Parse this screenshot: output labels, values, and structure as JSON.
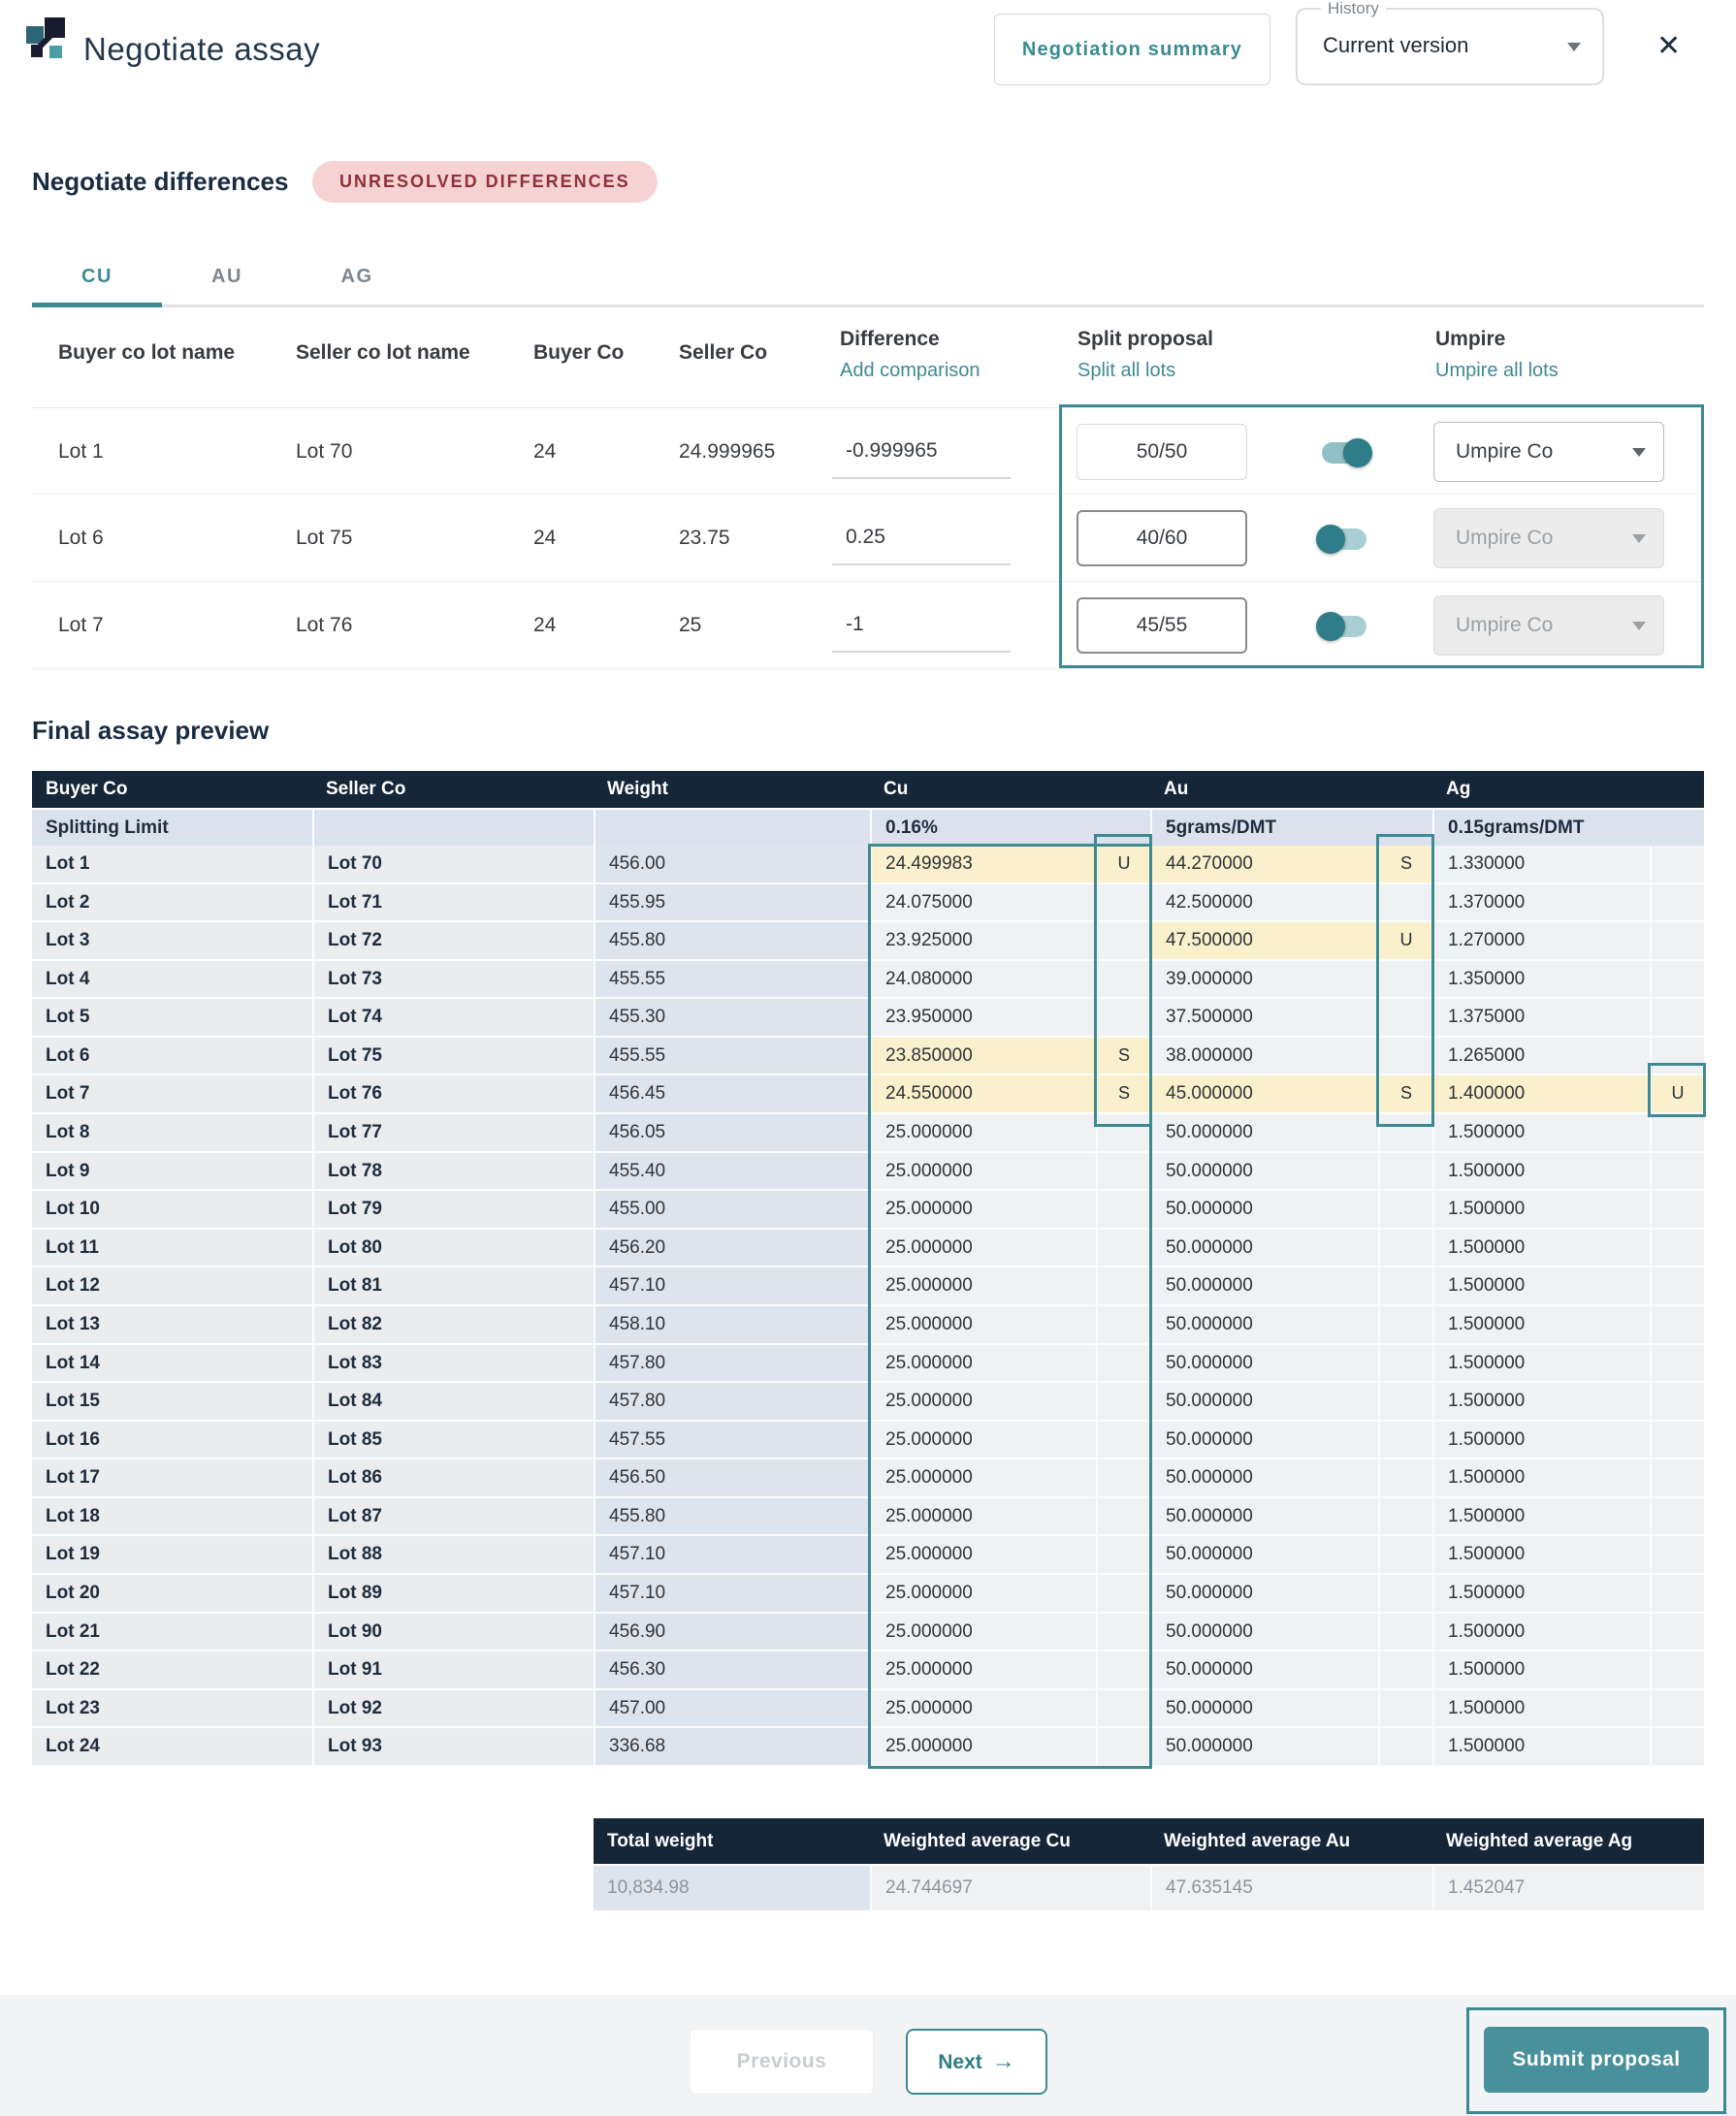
{
  "app": {
    "title": "Negotiate assay"
  },
  "header": {
    "summary_button": "Negotiation summary",
    "history_label": "History",
    "history_value": "Current version",
    "close_icon": "✕"
  },
  "negotiate": {
    "heading": "Negotiate differences",
    "badge": "UNRESOLVED DIFFERENCES",
    "tabs": [
      {
        "label": "CU",
        "active": true
      },
      {
        "label": "AU",
        "active": false
      },
      {
        "label": "AG",
        "active": false
      }
    ],
    "columns": {
      "buyer_lot": "Buyer co lot name",
      "seller_lot": "Seller co lot name",
      "buyer": "Buyer Co",
      "seller": "Seller Co",
      "difference": "Difference",
      "difference_link": "Add comparison",
      "split": "Split proposal",
      "split_link": "Split all lots",
      "umpire": "Umpire",
      "umpire_link": "Umpire all lots"
    },
    "rows": [
      {
        "buyer_lot": "Lot 1",
        "seller_lot": "Lot 70",
        "buyer": "24",
        "seller": "24.999965",
        "difference": "-0.999965",
        "split": "50/50",
        "toggle_on": true,
        "umpire": "Umpire Co",
        "umpire_enabled": true
      },
      {
        "buyer_lot": "Lot 6",
        "seller_lot": "Lot 75",
        "buyer": "24",
        "seller": "23.75",
        "difference": "0.25",
        "split": "40/60",
        "toggle_on": false,
        "umpire": "Umpire Co",
        "umpire_enabled": false
      },
      {
        "buyer_lot": "Lot 7",
        "seller_lot": "Lot 76",
        "buyer": "24",
        "seller": "25",
        "difference": "-1",
        "split": "45/55",
        "toggle_on": false,
        "umpire": "Umpire Co",
        "umpire_enabled": false
      }
    ]
  },
  "preview": {
    "heading": "Final assay preview",
    "columns": [
      "Buyer Co",
      "Seller Co",
      "Weight",
      "Cu",
      "Au",
      "Ag"
    ],
    "splitting_limit": {
      "label": "Splitting Limit",
      "cu": "0.16%",
      "au": "5grams/DMT",
      "ag": "0.15grams/DMT"
    },
    "rows": [
      {
        "buyer": "Lot 1",
        "seller": "Lot 70",
        "weight": "456.00",
        "cu": "24.499983",
        "cu_badge": "U",
        "cu_hl": true,
        "au": "44.270000",
        "au_badge": "S",
        "au_hl": true,
        "ag": "1.330000",
        "ag_badge": "",
        "ag_hl": false
      },
      {
        "buyer": "Lot 2",
        "seller": "Lot 71",
        "weight": "455.95",
        "cu": "24.075000",
        "cu_badge": "",
        "cu_hl": false,
        "au": "42.500000",
        "au_badge": "",
        "au_hl": false,
        "ag": "1.370000",
        "ag_badge": "",
        "ag_hl": false
      },
      {
        "buyer": "Lot 3",
        "seller": "Lot 72",
        "weight": "455.80",
        "cu": "23.925000",
        "cu_badge": "",
        "cu_hl": false,
        "au": "47.500000",
        "au_badge": "U",
        "au_hl": true,
        "ag": "1.270000",
        "ag_badge": "",
        "ag_hl": false
      },
      {
        "buyer": "Lot 4",
        "seller": "Lot 73",
        "weight": "455.55",
        "cu": "24.080000",
        "cu_badge": "",
        "cu_hl": false,
        "au": "39.000000",
        "au_badge": "",
        "au_hl": false,
        "ag": "1.350000",
        "ag_badge": "",
        "ag_hl": false
      },
      {
        "buyer": "Lot 5",
        "seller": "Lot 74",
        "weight": "455.30",
        "cu": "23.950000",
        "cu_badge": "",
        "cu_hl": false,
        "au": "37.500000",
        "au_badge": "",
        "au_hl": false,
        "ag": "1.375000",
        "ag_badge": "",
        "ag_hl": false
      },
      {
        "buyer": "Lot 6",
        "seller": "Lot 75",
        "weight": "455.55",
        "cu": "23.850000",
        "cu_badge": "S",
        "cu_hl": true,
        "au": "38.000000",
        "au_badge": "",
        "au_hl": false,
        "ag": "1.265000",
        "ag_badge": "",
        "ag_hl": false
      },
      {
        "buyer": "Lot 7",
        "seller": "Lot 76",
        "weight": "456.45",
        "cu": "24.550000",
        "cu_badge": "S",
        "cu_hl": true,
        "au": "45.000000",
        "au_badge": "S",
        "au_hl": true,
        "ag": "1.400000",
        "ag_badge": "U",
        "ag_hl": true
      },
      {
        "buyer": "Lot 8",
        "seller": "Lot 77",
        "weight": "456.05",
        "cu": "25.000000",
        "cu_badge": "",
        "cu_hl": false,
        "au": "50.000000",
        "au_badge": "",
        "au_hl": false,
        "ag": "1.500000",
        "ag_badge": "",
        "ag_hl": false
      },
      {
        "buyer": "Lot 9",
        "seller": "Lot 78",
        "weight": "455.40",
        "cu": "25.000000",
        "cu_badge": "",
        "cu_hl": false,
        "au": "50.000000",
        "au_badge": "",
        "au_hl": false,
        "ag": "1.500000",
        "ag_badge": "",
        "ag_hl": false
      },
      {
        "buyer": "Lot 10",
        "seller": "Lot 79",
        "weight": "455.00",
        "cu": "25.000000",
        "cu_badge": "",
        "cu_hl": false,
        "au": "50.000000",
        "au_badge": "",
        "au_hl": false,
        "ag": "1.500000",
        "ag_badge": "",
        "ag_hl": false
      },
      {
        "buyer": "Lot 11",
        "seller": "Lot 80",
        "weight": "456.20",
        "cu": "25.000000",
        "cu_badge": "",
        "cu_hl": false,
        "au": "50.000000",
        "au_badge": "",
        "au_hl": false,
        "ag": "1.500000",
        "ag_badge": "",
        "ag_hl": false
      },
      {
        "buyer": "Lot 12",
        "seller": "Lot 81",
        "weight": "457.10",
        "cu": "25.000000",
        "cu_badge": "",
        "cu_hl": false,
        "au": "50.000000",
        "au_badge": "",
        "au_hl": false,
        "ag": "1.500000",
        "ag_badge": "",
        "ag_hl": false
      },
      {
        "buyer": "Lot 13",
        "seller": "Lot 82",
        "weight": "458.10",
        "cu": "25.000000",
        "cu_badge": "",
        "cu_hl": false,
        "au": "50.000000",
        "au_badge": "",
        "au_hl": false,
        "ag": "1.500000",
        "ag_badge": "",
        "ag_hl": false
      },
      {
        "buyer": "Lot 14",
        "seller": "Lot 83",
        "weight": "457.80",
        "cu": "25.000000",
        "cu_badge": "",
        "cu_hl": false,
        "au": "50.000000",
        "au_badge": "",
        "au_hl": false,
        "ag": "1.500000",
        "ag_badge": "",
        "ag_hl": false
      },
      {
        "buyer": "Lot 15",
        "seller": "Lot 84",
        "weight": "457.80",
        "cu": "25.000000",
        "cu_badge": "",
        "cu_hl": false,
        "au": "50.000000",
        "au_badge": "",
        "au_hl": false,
        "ag": "1.500000",
        "ag_badge": "",
        "ag_hl": false
      },
      {
        "buyer": "Lot 16",
        "seller": "Lot 85",
        "weight": "457.55",
        "cu": "25.000000",
        "cu_badge": "",
        "cu_hl": false,
        "au": "50.000000",
        "au_badge": "",
        "au_hl": false,
        "ag": "1.500000",
        "ag_badge": "",
        "ag_hl": false
      },
      {
        "buyer": "Lot 17",
        "seller": "Lot 86",
        "weight": "456.50",
        "cu": "25.000000",
        "cu_badge": "",
        "cu_hl": false,
        "au": "50.000000",
        "au_badge": "",
        "au_hl": false,
        "ag": "1.500000",
        "ag_badge": "",
        "ag_hl": false
      },
      {
        "buyer": "Lot 18",
        "seller": "Lot 87",
        "weight": "455.80",
        "cu": "25.000000",
        "cu_badge": "",
        "cu_hl": false,
        "au": "50.000000",
        "au_badge": "",
        "au_hl": false,
        "ag": "1.500000",
        "ag_badge": "",
        "ag_hl": false
      },
      {
        "buyer": "Lot 19",
        "seller": "Lot 88",
        "weight": "457.10",
        "cu": "25.000000",
        "cu_badge": "",
        "cu_hl": false,
        "au": "50.000000",
        "au_badge": "",
        "au_hl": false,
        "ag": "1.500000",
        "ag_badge": "",
        "ag_hl": false
      },
      {
        "buyer": "Lot 20",
        "seller": "Lot 89",
        "weight": "457.10",
        "cu": "25.000000",
        "cu_badge": "",
        "cu_hl": false,
        "au": "50.000000",
        "au_badge": "",
        "au_hl": false,
        "ag": "1.500000",
        "ag_badge": "",
        "ag_hl": false
      },
      {
        "buyer": "Lot 21",
        "seller": "Lot 90",
        "weight": "456.90",
        "cu": "25.000000",
        "cu_badge": "",
        "cu_hl": false,
        "au": "50.000000",
        "au_badge": "",
        "au_hl": false,
        "ag": "1.500000",
        "ag_badge": "",
        "ag_hl": false
      },
      {
        "buyer": "Lot 22",
        "seller": "Lot 91",
        "weight": "456.30",
        "cu": "25.000000",
        "cu_badge": "",
        "cu_hl": false,
        "au": "50.000000",
        "au_badge": "",
        "au_hl": false,
        "ag": "1.500000",
        "ag_badge": "",
        "ag_hl": false
      },
      {
        "buyer": "Lot 23",
        "seller": "Lot 92",
        "weight": "457.00",
        "cu": "25.000000",
        "cu_badge": "",
        "cu_hl": false,
        "au": "50.000000",
        "au_badge": "",
        "au_hl": false,
        "ag": "1.500000",
        "ag_badge": "",
        "ag_hl": false
      },
      {
        "buyer": "Lot 24",
        "seller": "Lot 93",
        "weight": "336.68",
        "cu": "25.000000",
        "cu_badge": "",
        "cu_hl": false,
        "au": "50.000000",
        "au_badge": "",
        "au_hl": false,
        "ag": "1.500000",
        "ag_badge": "",
        "ag_hl": false
      }
    ],
    "totals": {
      "headers": [
        "Total weight",
        "Weighted average Cu",
        "Weighted average Au",
        "Weighted average Ag"
      ],
      "values": [
        "10,834.98",
        "24.744697",
        "47.635145",
        "1.452047"
      ]
    }
  },
  "footer": {
    "previous": "Previous",
    "next": "Next",
    "next_icon": "→",
    "submit": "Submit proposal"
  },
  "colors": {
    "accent_teal": "#3d8a92",
    "navy_header": "#152639",
    "badge_bg": "#f6d2d2",
    "badge_text": "#8e3039",
    "highlight_yellow": "#faf0cb",
    "weight_col_bg": "#dee4ee",
    "lot_col_bg": "#eaecee",
    "metal_col_bg": "#f0f1f3"
  }
}
